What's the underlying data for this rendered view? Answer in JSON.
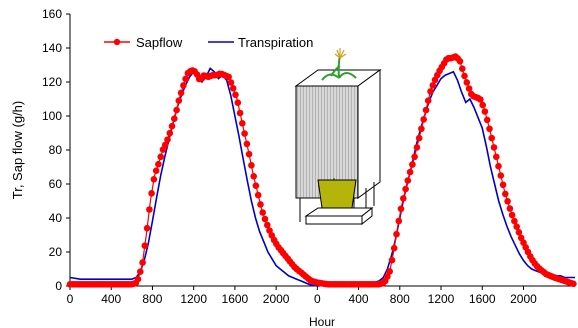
{
  "chart_data": {
    "type": "line",
    "xlabel": "Hour",
    "ylabel": "Tr, Sap flow (g/h)",
    "ylim": [
      0,
      160
    ],
    "yticks": [
      0,
      20,
      40,
      60,
      80,
      100,
      120,
      140,
      160
    ],
    "xtick_labels": [
      "0",
      "400",
      "800",
      "1200",
      "1600",
      "2000",
      "0",
      "400",
      "800",
      "1200",
      "1600",
      "2000"
    ],
    "x_units": "elapsed hours since the left axis origin",
    "xlim": [
      0,
      4900
    ],
    "grid": false,
    "legend_position": "top-left",
    "inset_illustration": "potted-plant-chamber",
    "colors": {
      "sapflow": "#ff0000",
      "transpiration": "#0000cc",
      "pot": "#b5b40a"
    },
    "series": [
      {
        "name": "Sapflow",
        "marker": "circle",
        "x": [
          0,
          300,
          600,
          650,
          700,
          740,
          780,
          820,
          860,
          900,
          940,
          980,
          1020,
          1060,
          1100,
          1140,
          1180,
          1220,
          1260,
          1300,
          1340,
          1380,
          1420,
          1460,
          1500,
          1540,
          1580,
          1620,
          1660,
          1700,
          1740,
          1780,
          1820,
          1860,
          1900,
          1940,
          1980,
          2020,
          2060,
          2100,
          2140,
          2180,
          2220,
          2260,
          2300,
          2340,
          2400,
          2500,
          2800,
          3000,
          3050,
          3100,
          3140,
          3180,
          3220,
          3260,
          3300,
          3340,
          3380,
          3420,
          3460,
          3500,
          3540,
          3580,
          3620,
          3660,
          3700,
          3740,
          3780,
          3820,
          3860,
          3900,
          3940,
          3980,
          4020,
          4060,
          4100,
          4140,
          4180,
          4220,
          4260,
          4300,
          4340,
          4380,
          4420,
          4460,
          4500,
          4540,
          4580,
          4620,
          4660,
          4700,
          4750,
          4800,
          4850,
          4900
        ],
        "values": [
          1,
          1,
          1,
          2,
          12,
          30,
          50,
          65,
          72,
          80,
          85,
          92,
          100,
          110,
          118,
          125,
          127,
          126,
          121,
          124,
          123,
          124,
          124,
          125,
          124,
          123,
          117,
          110,
          99,
          88,
          77,
          65,
          55,
          45,
          38,
          32,
          27,
          23,
          20,
          17,
          14,
          11,
          9,
          7,
          5,
          3,
          2,
          1,
          1,
          1,
          2,
          8,
          20,
          35,
          48,
          58,
          67,
          75,
          85,
          95,
          105,
          115,
          121,
          126,
          130,
          134,
          134,
          135,
          133,
          125,
          118,
          112,
          111,
          110,
          104,
          95,
          85,
          75,
          65,
          55,
          47,
          40,
          34,
          28,
          23,
          18,
          14,
          11,
          9,
          7,
          6,
          5,
          4,
          3,
          2,
          1
        ]
      },
      {
        "name": "Transpiration",
        "marker": "none",
        "x": [
          0,
          100,
          300,
          500,
          600,
          640,
          680,
          720,
          760,
          800,
          840,
          880,
          920,
          960,
          1000,
          1040,
          1080,
          1120,
          1160,
          1200,
          1240,
          1280,
          1320,
          1360,
          1400,
          1440,
          1480,
          1520,
          1560,
          1600,
          1640,
          1680,
          1720,
          1760,
          1800,
          1840,
          1880,
          1920,
          1960,
          2000,
          2040,
          2080,
          2120,
          2160,
          2200,
          2240,
          2280,
          2320,
          2400,
          2600,
          2800,
          2950,
          3000,
          3040,
          3080,
          3120,
          3160,
          3200,
          3240,
          3280,
          3320,
          3360,
          3400,
          3440,
          3480,
          3520,
          3560,
          3600,
          3640,
          3680,
          3720,
          3760,
          3800,
          3840,
          3880,
          3920,
          3960,
          4000,
          4040,
          4080,
          4120,
          4160,
          4200,
          4240,
          4280,
          4320,
          4360,
          4400,
          4440,
          4480,
          4520,
          4560,
          4600,
          4640,
          4680,
          4720,
          4760,
          4800,
          4850,
          4900
        ],
        "values": [
          5,
          4,
          4,
          4,
          4,
          5,
          8,
          15,
          25,
          38,
          52,
          65,
          76,
          86,
          96,
          105,
          112,
          118,
          123,
          126,
          124,
          120,
          123,
          128,
          126,
          122,
          124,
          121,
          112,
          100,
          88,
          75,
          62,
          50,
          40,
          32,
          26,
          20,
          16,
          12,
          10,
          8,
          6,
          5,
          4,
          3,
          2,
          1,
          0,
          1,
          1,
          2,
          3,
          5,
          10,
          18,
          28,
          40,
          52,
          62,
          72,
          83,
          92,
          100,
          108,
          114,
          118,
          122,
          124,
          125,
          126,
          121,
          114,
          108,
          110,
          105,
          99,
          93,
          82,
          70,
          60,
          50,
          42,
          35,
          29,
          24,
          19,
          15,
          12,
          10,
          9,
          8,
          7,
          7,
          6,
          6,
          6,
          5,
          5,
          5
        ]
      }
    ]
  }
}
